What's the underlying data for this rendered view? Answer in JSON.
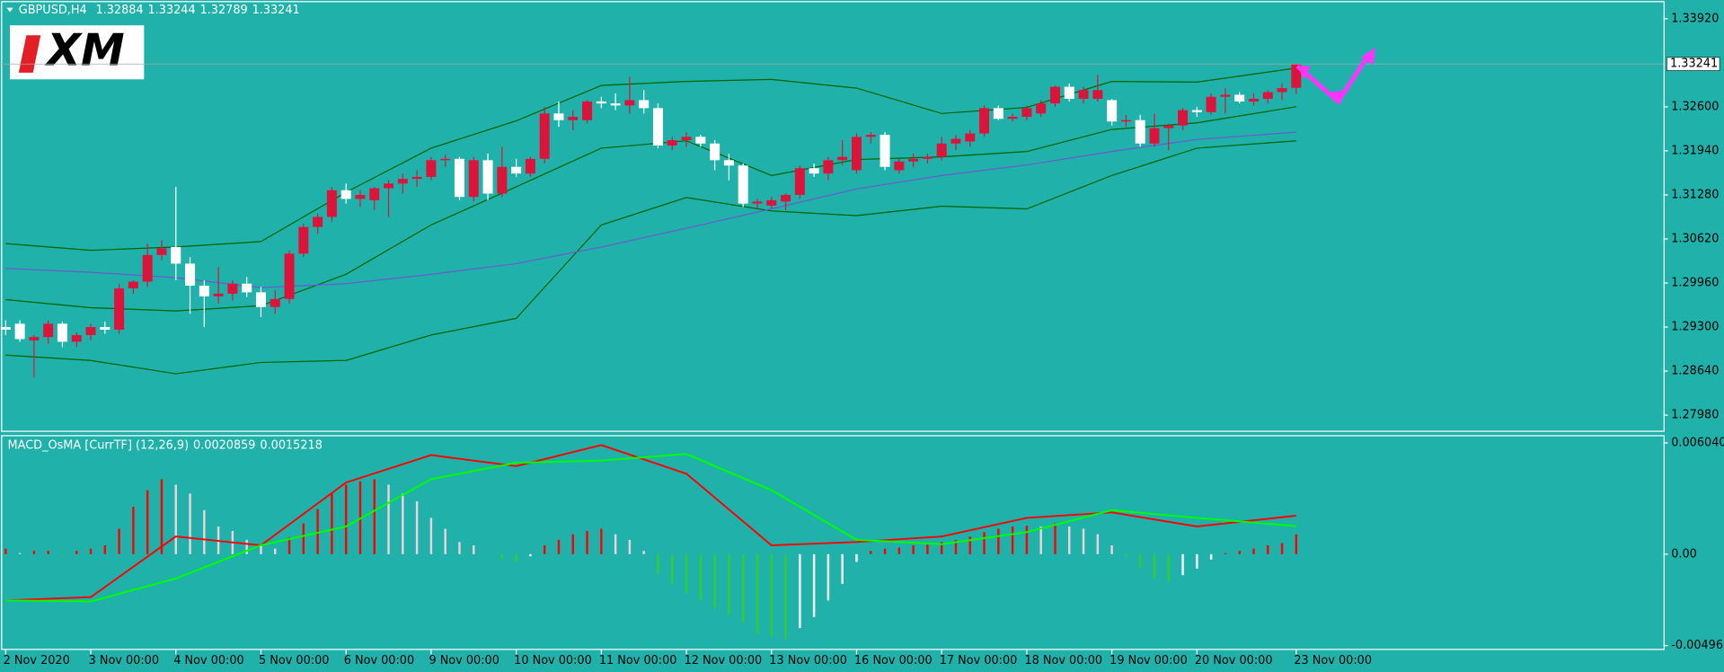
{
  "chart_data": [
    {
      "type": "candlestick",
      "title": "GBPUSD,H4",
      "logo": "XM",
      "up_color": "#dc143c",
      "down_color": "#ffffff",
      "xlim": [
        -0.4,
        116.9
      ],
      "xticks": [
        {
          "value": 0,
          "label": "2 Nov 2020"
        },
        {
          "value": 6,
          "label": "3 Nov 00:00"
        },
        {
          "value": 12,
          "label": "4 Nov 00:00"
        },
        {
          "value": 18,
          "label": "5 Nov 00:00"
        },
        {
          "value": 24,
          "label": "6 Nov 00:00"
        },
        {
          "value": 30,
          "label": "9 Nov 00:00"
        },
        {
          "value": 36,
          "label": "10 Nov 00:00"
        },
        {
          "value": 42,
          "label": "11 Nov 00:00"
        },
        {
          "value": 48,
          "label": "12 Nov 00:00"
        },
        {
          "value": 54,
          "label": "13 Nov 00:00"
        },
        {
          "value": 60,
          "label": "16 Nov 00:00"
        },
        {
          "value": 66,
          "label": "17 Nov 00:00"
        },
        {
          "value": 72,
          "label": "18 Nov 00:00"
        },
        {
          "value": 78,
          "label": "19 Nov 00:00"
        },
        {
          "value": 84,
          "label": "20 Nov 00:00"
        },
        {
          "value": 91,
          "label": "23 Nov 00:00"
        }
      ],
      "ylim": [
        1.2773,
        1.342
      ],
      "yticks": [
        {
          "value": 1.3392,
          "label": "1.33920"
        },
        {
          "value": 1.326,
          "label": "1.32600"
        },
        {
          "value": 1.3194,
          "label": "1.31940"
        },
        {
          "value": 1.3128,
          "label": "1.31280"
        },
        {
          "value": 1.3062,
          "label": "1.30620"
        },
        {
          "value": 1.2996,
          "label": "1.29960"
        },
        {
          "value": 1.293,
          "label": "1.29300"
        },
        {
          "value": 1.2864,
          "label": "1.28640"
        },
        {
          "value": 1.2798,
          "label": "1.27980"
        }
      ],
      "ohlc": [
        [
          1.293,
          1.294,
          1.2918,
          1.2926
        ],
        [
          1.2935,
          1.294,
          1.2908,
          1.2912
        ],
        [
          1.291,
          1.2918,
          1.2855,
          1.2915
        ],
        [
          1.2915,
          1.294,
          1.2905,
          1.2935
        ],
        [
          1.2935,
          1.2938,
          1.29,
          1.2908
        ],
        [
          1.2908,
          1.2922,
          1.29,
          1.2918
        ],
        [
          1.2918,
          1.2935,
          1.291,
          1.293
        ],
        [
          1.293,
          1.2938,
          1.292,
          1.2926
        ],
        [
          1.2926,
          1.2995,
          1.292,
          1.2988
        ],
        [
          1.2988,
          1.3,
          1.298,
          1.2998
        ],
        [
          1.2998,
          1.3055,
          1.299,
          1.3038
        ],
        [
          1.3038,
          1.306,
          1.303,
          1.3048
        ],
        [
          1.305,
          1.314,
          1.3,
          1.3025
        ],
        [
          1.3025,
          1.3035,
          1.295,
          1.2992
        ],
        [
          1.2992,
          1.3,
          1.293,
          1.2976
        ],
        [
          1.2976,
          1.302,
          1.2965,
          1.298
        ],
        [
          1.298,
          1.3,
          1.297,
          1.2995
        ],
        [
          1.2995,
          1.3005,
          1.2975,
          1.2982
        ],
        [
          1.2982,
          1.299,
          1.2945,
          1.296
        ],
        [
          1.296,
          1.2985,
          1.295,
          1.2972
        ],
        [
          1.2972,
          1.3045,
          1.2965,
          1.304
        ],
        [
          1.304,
          1.3085,
          1.3035,
          1.308
        ],
        [
          1.308,
          1.31,
          1.307,
          1.3095
        ],
        [
          1.3095,
          1.314,
          1.3088,
          1.3135
        ],
        [
          1.3135,
          1.3145,
          1.3115,
          1.3122
        ],
        [
          1.3122,
          1.3135,
          1.311,
          1.3128
        ],
        [
          1.312,
          1.314,
          1.3105,
          1.3138
        ],
        [
          1.3138,
          1.315,
          1.3095,
          1.3145
        ],
        [
          1.3145,
          1.316,
          1.313,
          1.3152
        ],
        [
          1.3152,
          1.3165,
          1.314,
          1.3155
        ],
        [
          1.3155,
          1.3185,
          1.315,
          1.318
        ],
        [
          1.318,
          1.3188,
          1.317,
          1.3182
        ],
        [
          1.3182,
          1.3185,
          1.312,
          1.3125
        ],
        [
          1.3125,
          1.3185,
          1.3118,
          1.318
        ],
        [
          1.318,
          1.319,
          1.312,
          1.313
        ],
        [
          1.313,
          1.32,
          1.3125,
          1.317
        ],
        [
          1.317,
          1.3182,
          1.3155,
          1.316
        ],
        [
          1.316,
          1.3185,
          1.3155,
          1.3182
        ],
        [
          1.3182,
          1.326,
          1.3175,
          1.325
        ],
        [
          1.325,
          1.3268,
          1.323,
          1.324
        ],
        [
          1.324,
          1.3255,
          1.3225,
          1.3245
        ],
        [
          1.324,
          1.327,
          1.3235,
          1.3268
        ],
        [
          1.3268,
          1.3275,
          1.3258,
          1.3265
        ],
        [
          1.3265,
          1.328,
          1.3255,
          1.3262
        ],
        [
          1.3262,
          1.3305,
          1.325,
          1.327
        ],
        [
          1.327,
          1.3285,
          1.325,
          1.3258
        ],
        [
          1.3258,
          1.3265,
          1.3198,
          1.3202
        ],
        [
          1.3202,
          1.3215,
          1.3195,
          1.321
        ],
        [
          1.321,
          1.3222,
          1.32,
          1.3215
        ],
        [
          1.3215,
          1.3218,
          1.32,
          1.3205
        ],
        [
          1.3205,
          1.321,
          1.3165,
          1.318
        ],
        [
          1.318,
          1.319,
          1.315,
          1.3172
        ],
        [
          1.3172,
          1.3175,
          1.311,
          1.3115
        ],
        [
          1.3115,
          1.3122,
          1.3108,
          1.3118
        ],
        [
          1.3112,
          1.3125,
          1.3108,
          1.312
        ],
        [
          1.3118,
          1.313,
          1.3105,
          1.3128
        ],
        [
          1.3128,
          1.3172,
          1.3122,
          1.3168
        ],
        [
          1.3168,
          1.3175,
          1.3155,
          1.316
        ],
        [
          1.316,
          1.3185,
          1.315,
          1.318
        ],
        [
          1.318,
          1.321,
          1.3172,
          1.3185
        ],
        [
          1.3165,
          1.322,
          1.316,
          1.3215
        ],
        [
          1.3215,
          1.3222,
          1.3205,
          1.3218
        ],
        [
          1.3218,
          1.3222,
          1.3165,
          1.317
        ],
        [
          1.3165,
          1.3182,
          1.316,
          1.3178
        ],
        [
          1.3178,
          1.319,
          1.317,
          1.3182
        ],
        [
          1.3182,
          1.319,
          1.3175,
          1.3185
        ],
        [
          1.3185,
          1.3215,
          1.318,
          1.3205
        ],
        [
          1.3205,
          1.3218,
          1.3195,
          1.3212
        ],
        [
          1.3208,
          1.3225,
          1.32,
          1.322
        ],
        [
          1.322,
          1.3262,
          1.3215,
          1.3258
        ],
        [
          1.3258,
          1.3262,
          1.324,
          1.3242
        ],
        [
          1.3242,
          1.325,
          1.3238,
          1.3245
        ],
        [
          1.3245,
          1.3262,
          1.324,
          1.3258
        ],
        [
          1.325,
          1.327,
          1.3245,
          1.3265
        ],
        [
          1.3265,
          1.3292,
          1.326,
          1.329
        ],
        [
          1.329,
          1.3295,
          1.3268,
          1.3272
        ],
        [
          1.3272,
          1.329,
          1.3265,
          1.3285
        ],
        [
          1.3272,
          1.3308,
          1.3268,
          1.3285
        ],
        [
          1.327,
          1.3272,
          1.3232,
          1.3238
        ],
        [
          1.3238,
          1.3248,
          1.323,
          1.324
        ],
        [
          1.324,
          1.3248,
          1.32,
          1.3205
        ],
        [
          1.3205,
          1.325,
          1.32,
          1.3228
        ],
        [
          1.3228,
          1.3235,
          1.3195,
          1.3232
        ],
        [
          1.3232,
          1.3258,
          1.3225,
          1.3255
        ],
        [
          1.3255,
          1.326,
          1.3245,
          1.3252
        ],
        [
          1.3252,
          1.328,
          1.3248,
          1.3275
        ],
        [
          1.3275,
          1.3288,
          1.325,
          1.3278
        ],
        [
          1.3278,
          1.3282,
          1.3265,
          1.3268
        ],
        [
          1.3268,
          1.328,
          1.3262,
          1.3272
        ],
        [
          1.3272,
          1.3285,
          1.3265,
          1.3282
        ],
        [
          1.3282,
          1.3295,
          1.327,
          1.3288
        ],
        [
          1.32884,
          1.33244,
          1.32789,
          1.33241
        ]
      ],
      "lines": [
        {
          "color": "#006400",
          "x": [
            0,
            6,
            12,
            18,
            24,
            30,
            36,
            42,
            48,
            54,
            60,
            66,
            72,
            78,
            84,
            91
          ],
          "values": [
            1.3055,
            1.3045,
            1.305,
            1.3058,
            1.3132,
            1.3198,
            1.3239,
            1.3292,
            1.3298,
            1.3301,
            1.3288,
            1.325,
            1.3259,
            1.3298,
            1.3297,
            1.3318
          ]
        },
        {
          "color": "#006400",
          "x": [
            0,
            6,
            12,
            18,
            24,
            30,
            36,
            42,
            48,
            54,
            60,
            66,
            72,
            78,
            84,
            91
          ],
          "values": [
            1.2971,
            1.2959,
            1.2954,
            1.2962,
            1.3009,
            1.3083,
            1.314,
            1.3198,
            1.3209,
            1.3157,
            1.3181,
            1.3185,
            1.3193,
            1.3226,
            1.3236,
            1.326
          ]
        },
        {
          "color": "#006400",
          "x": [
            0,
            6,
            12,
            18,
            24,
            30,
            36,
            42,
            48,
            54,
            60,
            66,
            72,
            78,
            84,
            91
          ],
          "values": [
            1.2888,
            1.288,
            1.286,
            1.2877,
            1.288,
            1.2918,
            1.2943,
            1.3083,
            1.3124,
            1.3104,
            1.3097,
            1.3111,
            1.3107,
            1.3157,
            1.3198,
            1.3209
          ]
        },
        {
          "color": "#6a5acd",
          "x": [
            0,
            6,
            12,
            18,
            24,
            30,
            36,
            42,
            48,
            54,
            60,
            66,
            72,
            78,
            84,
            91
          ],
          "values": [
            1.3018,
            1.3012,
            1.3004,
            1.2989,
            1.2995,
            1.3009,
            1.3025,
            1.305,
            1.3078,
            1.3107,
            1.3137,
            1.3157,
            1.3173,
            1.3193,
            1.3211,
            1.3222
          ]
        }
      ]
    },
    {
      "type": "macd",
      "title": "MACD_OsMA [CurrTF] (12,26,9)",
      "xlim": [
        -0.4,
        116.9
      ],
      "ylim": [
        -0.0052,
        0.0064
      ],
      "yticks": [
        0.0060401,
        {
          "value": 0,
          "label": "0.00"
        },
        -0.0049625
      ],
      "colors": {
        "rise_pos": "#ff0000",
        "fall_pos": "#f0d0dc",
        "fall_neg": "#32cd32",
        "rise_neg": "#ffffff"
      },
      "values": [
        0.0003,
        6e-05,
        0.00018,
        0.00018,
        -6e-05,
        0.00018,
        0.0003,
        0.00048,
        0.00138,
        0.00257,
        0.00347,
        0.00407,
        0.00377,
        0.00329,
        0.00239,
        0.0015,
        0.00126,
        0.00078,
        0.00048,
        0.0003,
        0.0009,
        0.00167,
        0.00245,
        0.00329,
        0.00377,
        0.00395,
        0.00407,
        0.00377,
        0.00329,
        0.00287,
        0.00197,
        0.00138,
        0.00066,
        0.00048,
        0,
        -0.00024,
        -0.00042,
        -0.00012,
        0.00048,
        0.00078,
        0.00108,
        0.00126,
        0.00138,
        0.00108,
        0.00078,
        0.00018,
        -0.00102,
        -0.00161,
        -0.00209,
        -0.00251,
        -0.00293,
        -0.00329,
        -0.00371,
        -0.00431,
        -0.00449,
        -0.0046,
        -0.00401,
        -0.00341,
        -0.00251,
        -0.00161,
        -0.00042,
        0.00018,
        0.0003,
        0.00036,
        0.00048,
        0.00054,
        0.00066,
        0.00078,
        0.00096,
        0.0012,
        0.00138,
        0.0015,
        0.00155,
        0.0015,
        0.00167,
        0.0015,
        0.00138,
        0.00108,
        0.00048,
        -0.00012,
        -0.00072,
        -0.00132,
        -0.0015,
        -0.00114,
        -0.00078,
        -0.0003,
        6e-05,
        0.00018,
        0.0003,
        0.00048,
        0.0006,
        0.00108
      ],
      "lines": [
        {
          "color": "#ff0000",
          "x": [
            0,
            6,
            12,
            18,
            24,
            30,
            36,
            42,
            48,
            54,
            60,
            66,
            72,
            78,
            84,
            91
          ],
          "values": [
            -0.00251,
            -0.00233,
            0.00096,
            0.00048,
            0.00389,
            0.00538,
            0.00478,
            0.00592,
            0.00437,
            0.00048,
            0.00066,
            0.00096,
            0.00197,
            0.00227,
            0.0015,
            0.0020859
          ]
        },
        {
          "color": "#00ff00",
          "x": [
            0,
            6,
            12,
            18,
            24,
            30,
            36,
            42,
            48,
            54,
            60,
            66,
            72,
            78,
            84,
            91
          ],
          "values": [
            -0.00251,
            -0.00257,
            -0.00132,
            0.00048,
            0.0015,
            0.00407,
            0.00496,
            0.00508,
            0.00544,
            0.00347,
            0.00078,
            0.00054,
            0.0012,
            0.00239,
            0.00197,
            0.0015218
          ]
        }
      ]
    }
  ]
}
